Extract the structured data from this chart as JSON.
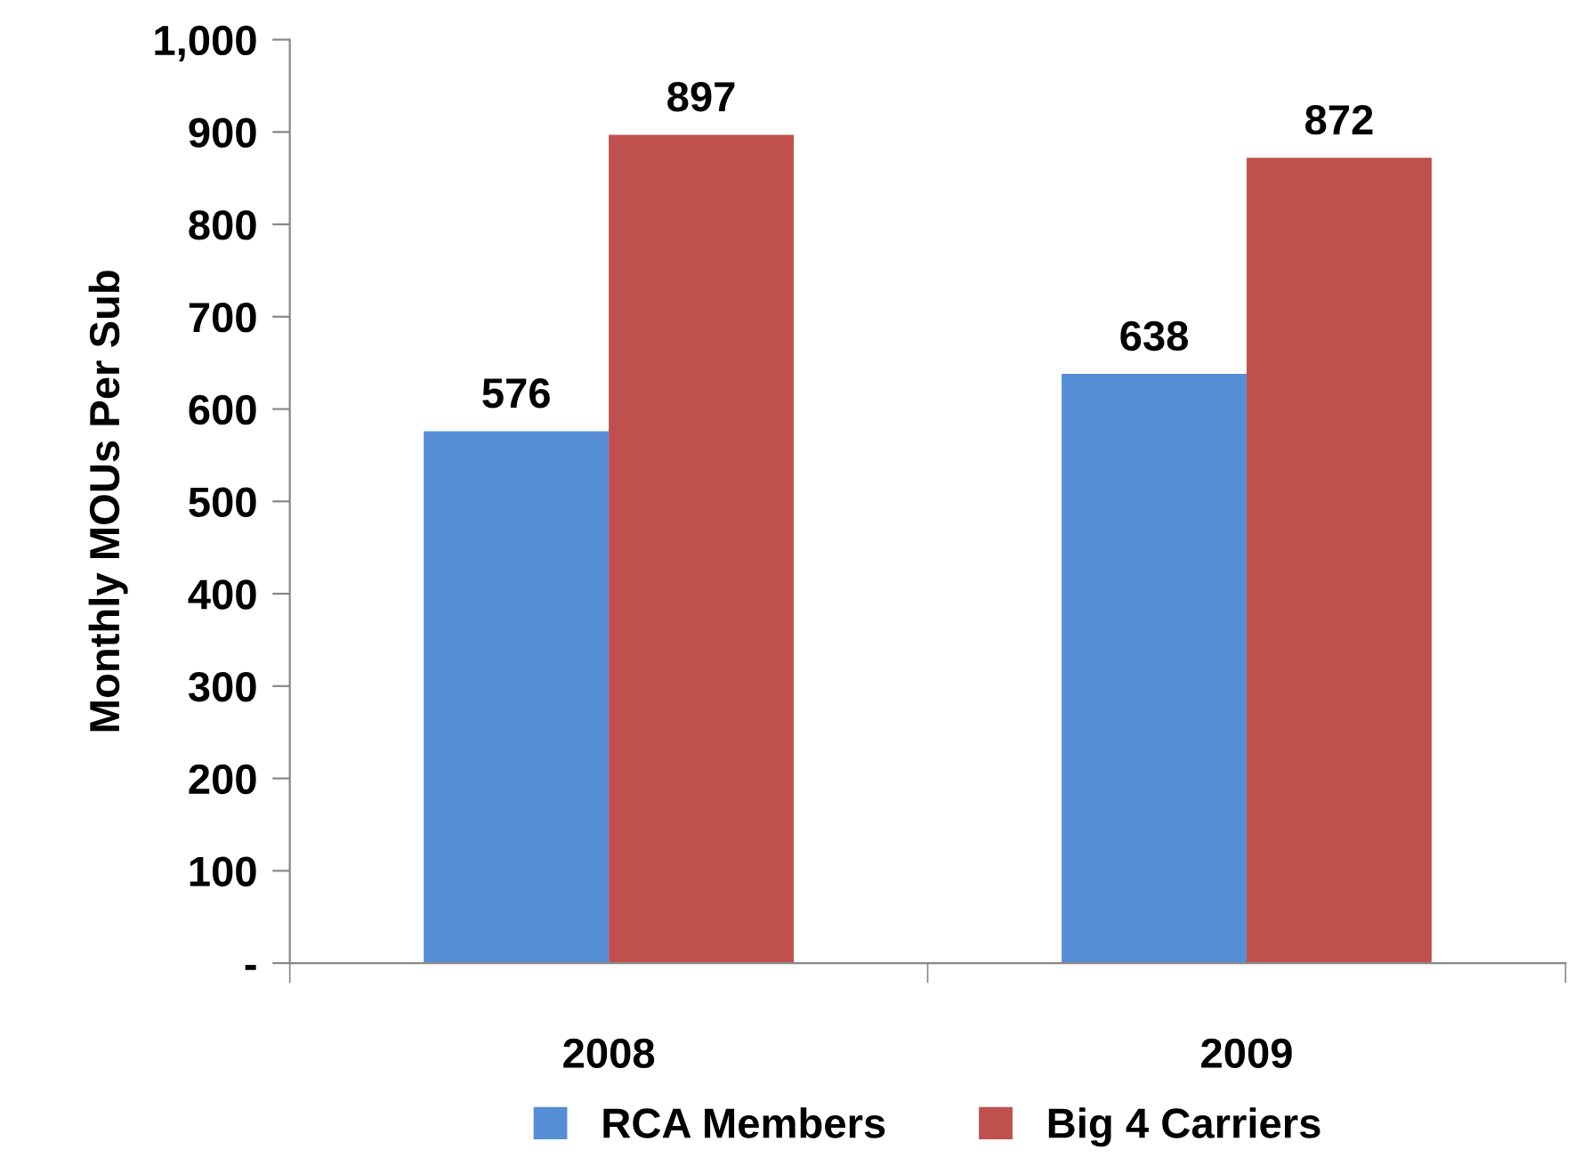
{
  "chart_data": {
    "type": "bar",
    "ylabel": "Monthly MOUs Per Sub",
    "categories": [
      "2008",
      "2009"
    ],
    "series": [
      {
        "name": "RCA Members",
        "color": "#558ed5",
        "values": [
          576,
          638
        ]
      },
      {
        "name": "Big 4 Carriers",
        "color": "#c0504d",
        "values": [
          897,
          872
        ]
      }
    ],
    "ylim": [
      0,
      1000
    ],
    "yticks": [
      {
        "value": 0,
        "label": "-"
      },
      100,
      200,
      300,
      400,
      500,
      600,
      700,
      800,
      900,
      {
        "value": 1000,
        "label": "1,000"
      }
    ],
    "data_labels": true,
    "legend": "bottom",
    "grid": false
  }
}
